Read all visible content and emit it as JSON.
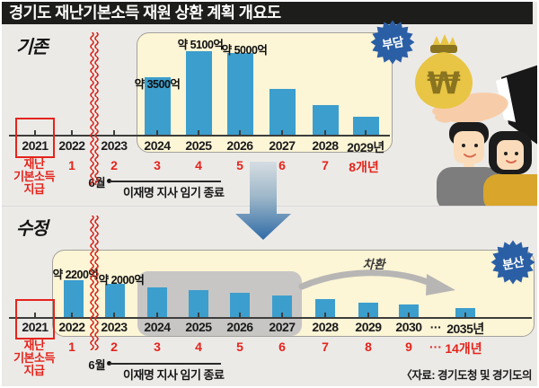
{
  "title": "경기도 재난기본소득 재원 상환 계획 개요도",
  "source": "〈자료: 경기도청 및 경기도의회〉",
  "colors": {
    "background": "#eceae7",
    "panel": "#fcf5d6",
    "bar": "#3c9ecd",
    "badge": "#2b5fa5",
    "accent_red": "#e4241c",
    "gray_overlay": "#c7c6c4",
    "title_bar": "#1d1d1b"
  },
  "top": {
    "section_label": "기존",
    "badge": "부담",
    "note_lines": [
      "재난",
      "기본소득",
      "지급"
    ],
    "june": "6월",
    "term_end": "이재명 지사 임기 종료"
  },
  "bottom": {
    "section_label": "수정",
    "badge": "분산",
    "refinance": "차환",
    "note_lines": [
      "재난",
      "기본소득",
      "지급"
    ],
    "june": "6월",
    "term_end": "이재명 지사 임기 종료"
  },
  "chart_data": [
    {
      "type": "bar",
      "title": "기존 상환 계획",
      "badge": "부담",
      "categories": [
        "2024",
        "2025",
        "2026",
        "2027",
        "2028",
        "2029년"
      ],
      "values": [
        3500,
        5100,
        5000,
        2800,
        1850,
        1150
      ],
      "value_labels": [
        "약 3500억",
        "약 5100억",
        "약 5000억",
        "",
        "",
        ""
      ],
      "unit": "억 원",
      "ylim": [
        0,
        5500
      ],
      "timeline_years": [
        "2021",
        "2022",
        "2023",
        "2024",
        "2025",
        "2026",
        "2027",
        "2028",
        "2029년"
      ],
      "timeline_numbers": [
        "1",
        "2",
        "3",
        "4",
        "5",
        "6",
        "7",
        "8개년"
      ],
      "highlight_year": "2021"
    },
    {
      "type": "bar",
      "title": "수정 상환 계획",
      "badge": "분산",
      "categories": [
        "2022",
        "2023",
        "2024",
        "2025",
        "2026",
        "2027",
        "2028",
        "2029",
        "2030",
        "2035년"
      ],
      "values": [
        2200,
        2000,
        1800,
        1600,
        1450,
        1300,
        1100,
        900,
        800,
        550
      ],
      "value_labels": [
        "약 2200억",
        "약 2000억",
        "",
        "",
        "",
        "",
        "",
        "",
        "",
        ""
      ],
      "unit": "억 원",
      "ylim": [
        0,
        2500
      ],
      "timeline_years": [
        "2021",
        "2022",
        "2023",
        "2024",
        "2025",
        "2026",
        "2027",
        "2028",
        "2029",
        "2030",
        "···",
        "2035년"
      ],
      "timeline_numbers": [
        "1",
        "2",
        "3",
        "4",
        "5",
        "6",
        "7",
        "8",
        "9",
        "···",
        "14개년"
      ],
      "highlight_year": "2021",
      "grayed_years": [
        "2024",
        "2025",
        "2026",
        "2027"
      ]
    }
  ]
}
